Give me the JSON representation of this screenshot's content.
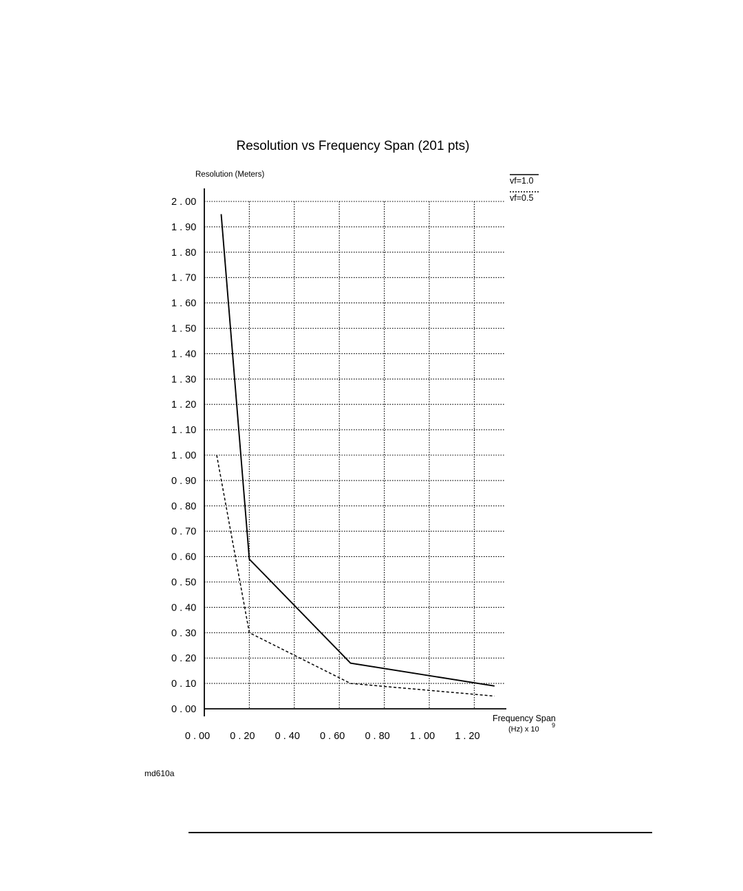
{
  "chart_data": {
    "type": "line",
    "title": "Resolution vs Frequency Span (201 pts)",
    "ylabel": "Resolution (Meters)",
    "xlabel": "Frequency Span",
    "xlabel_unit": "(Hz) x 10",
    "xlabel_exponent": "9",
    "xlim": [
      0.0,
      1.3
    ],
    "ylim": [
      0.0,
      2.0
    ],
    "grid": true,
    "legend_position": "top-right",
    "x_ticks": [
      0.0,
      0.2,
      0.4,
      0.6,
      0.8,
      1.0,
      1.2
    ],
    "x_tick_labels": [
      "0 . 00",
      "0 . 20",
      "0 . 40",
      "0 . 60",
      "0 . 80",
      "1 . 00",
      "1 . 20"
    ],
    "x_gridlines": [
      0.2,
      0.4,
      0.6,
      0.8,
      1.0,
      1.2
    ],
    "y_ticks": [
      0.0,
      0.1,
      0.2,
      0.3,
      0.4,
      0.5,
      0.6,
      0.7,
      0.8,
      0.9,
      1.0,
      1.1,
      1.2,
      1.3,
      1.4,
      1.5,
      1.6,
      1.7,
      1.8,
      1.9,
      2.0
    ],
    "y_tick_labels": [
      "0 . 00",
      "0 . 10",
      "0 . 20",
      "0 . 30",
      "0 . 40",
      "0 . 50",
      "0 . 60",
      "0 . 70",
      "0 . 80",
      "0 . 90",
      "1 . 00",
      "1 . 10",
      "1 . 20",
      "1 . 30",
      "1 . 40",
      "1 . 50",
      "1 . 60",
      "1 . 70",
      "1 . 80",
      "1 . 90",
      "2 . 00"
    ],
    "series": [
      {
        "name": "vf=1.0",
        "style": "solid",
        "points": [
          [
            0.075,
            1.95
          ],
          [
            0.2,
            0.59
          ],
          [
            0.65,
            0.18
          ],
          [
            1.29,
            0.09
          ]
        ]
      },
      {
        "name": "vf=0.5",
        "style": "dashed",
        "points": [
          [
            0.055,
            1.0
          ],
          [
            0.2,
            0.3
          ],
          [
            0.65,
            0.1
          ],
          [
            1.29,
            0.05
          ]
        ]
      }
    ]
  },
  "figure_id": "md610a"
}
